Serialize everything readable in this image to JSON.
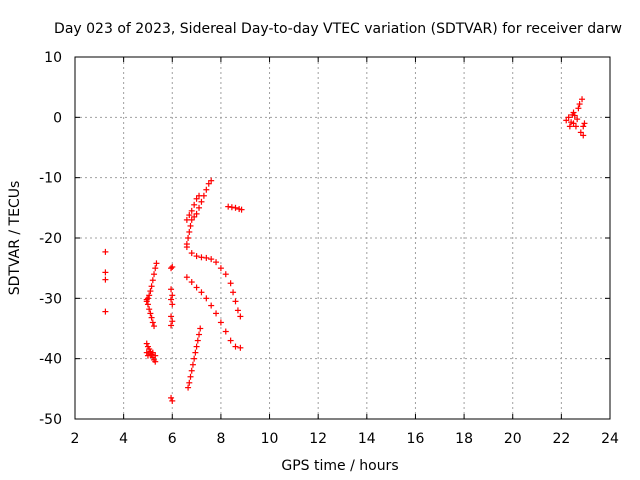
{
  "chart_data": {
    "type": "scatter",
    "title": "Day 023 of 2023, Sidereal Day-to-day VTEC variation (SDTVAR) for receiver darw",
    "xlabel": "GPS time / hours",
    "ylabel": "SDTVAR / TECUs",
    "xlim": [
      2,
      24
    ],
    "ylim": [
      -50,
      10
    ],
    "xticks": [
      "2",
      "4",
      "6",
      "8",
      "10",
      "12",
      "14",
      "16",
      "18",
      "20",
      "22",
      "24"
    ],
    "yticks": [
      "10",
      "0",
      "-10",
      "-20",
      "-30",
      "-40",
      "-50"
    ],
    "grid": true,
    "marker": "+",
    "series_color": "#ff0000",
    "points": [
      [
        3.25,
        -22.3
      ],
      [
        3.25,
        -25.7
      ],
      [
        3.25,
        -26.9
      ],
      [
        3.25,
        -32.2
      ],
      [
        4.95,
        -30.2
      ],
      [
        5.0,
        -30.0
      ],
      [
        5.05,
        -29.5
      ],
      [
        5.1,
        -28.8
      ],
      [
        5.15,
        -28.0
      ],
      [
        5.2,
        -27.0
      ],
      [
        5.25,
        -26.0
      ],
      [
        5.3,
        -25.0
      ],
      [
        5.35,
        -24.2
      ],
      [
        4.95,
        -30.5
      ],
      [
        5.0,
        -31.0
      ],
      [
        5.05,
        -31.8
      ],
      [
        5.1,
        -32.5
      ],
      [
        5.15,
        -33.2
      ],
      [
        5.2,
        -34.0
      ],
      [
        5.25,
        -34.6
      ],
      [
        4.95,
        -37.5
      ],
      [
        5.0,
        -38.0
      ],
      [
        5.05,
        -38.4
      ],
      [
        5.1,
        -38.8
      ],
      [
        5.15,
        -39.3
      ],
      [
        5.2,
        -39.8
      ],
      [
        5.25,
        -40.2
      ],
      [
        5.3,
        -40.5
      ],
      [
        4.95,
        -39.0
      ],
      [
        5.0,
        -39.5
      ],
      [
        5.1,
        -39.2
      ],
      [
        5.2,
        -39.0
      ],
      [
        5.3,
        -39.5
      ],
      [
        5.95,
        -25.0
      ],
      [
        6.0,
        -24.8
      ],
      [
        5.95,
        -28.5
      ],
      [
        6.0,
        -29.5
      ],
      [
        5.95,
        -30.2
      ],
      [
        6.0,
        -31.0
      ],
      [
        5.95,
        -33.0
      ],
      [
        6.0,
        -33.8
      ],
      [
        5.95,
        -34.5
      ],
      [
        5.95,
        -46.5
      ],
      [
        6.0,
        -47.0
      ],
      [
        6.65,
        -44.8
      ],
      [
        6.7,
        -44.0
      ],
      [
        6.75,
        -43.0
      ],
      [
        6.8,
        -42.0
      ],
      [
        6.85,
        -41.0
      ],
      [
        6.9,
        -40.0
      ],
      [
        6.95,
        -39.0
      ],
      [
        7.0,
        -38.0
      ],
      [
        7.05,
        -37.0
      ],
      [
        7.1,
        -36.0
      ],
      [
        7.15,
        -35.0
      ],
      [
        6.6,
        -21.0
      ],
      [
        6.65,
        -20.0
      ],
      [
        6.7,
        -19.0
      ],
      [
        6.75,
        -18.0
      ],
      [
        6.8,
        -17.0
      ],
      [
        6.9,
        -16.5
      ],
      [
        7.0,
        -16.0
      ],
      [
        7.1,
        -15.0
      ],
      [
        7.2,
        -14.0
      ],
      [
        7.3,
        -13.0
      ],
      [
        7.4,
        -12.0
      ],
      [
        7.5,
        -11.0
      ],
      [
        7.6,
        -10.5
      ],
      [
        6.6,
        -17.0
      ],
      [
        6.7,
        -16.2
      ],
      [
        6.8,
        -15.5
      ],
      [
        6.9,
        -14.5
      ],
      [
        7.0,
        -13.5
      ],
      [
        7.1,
        -13.0
      ],
      [
        6.6,
        -21.5
      ],
      [
        6.8,
        -22.5
      ],
      [
        7.0,
        -23.0
      ],
      [
        7.2,
        -23.2
      ],
      [
        7.4,
        -23.3
      ],
      [
        7.6,
        -23.5
      ],
      [
        7.8,
        -24.0
      ],
      [
        8.0,
        -25.0
      ],
      [
        8.2,
        -26.0
      ],
      [
        8.4,
        -27.5
      ],
      [
        8.5,
        -29.0
      ],
      [
        8.6,
        -30.5
      ],
      [
        8.7,
        -32.0
      ],
      [
        8.8,
        -33.0
      ],
      [
        6.6,
        -26.5
      ],
      [
        6.8,
        -27.3
      ],
      [
        7.0,
        -28.2
      ],
      [
        7.2,
        -29.0
      ],
      [
        7.4,
        -30.0
      ],
      [
        7.6,
        -31.2
      ],
      [
        7.8,
        -32.5
      ],
      [
        8.0,
        -34.0
      ],
      [
        8.2,
        -35.5
      ],
      [
        8.4,
        -37.0
      ],
      [
        8.6,
        -38.0
      ],
      [
        8.8,
        -38.2
      ],
      [
        8.3,
        -14.8
      ],
      [
        8.45,
        -14.9
      ],
      [
        8.6,
        -15.0
      ],
      [
        8.75,
        -15.2
      ],
      [
        8.85,
        -15.3
      ],
      [
        22.2,
        -0.5
      ],
      [
        22.3,
        0.0
      ],
      [
        22.4,
        -0.8
      ],
      [
        22.45,
        0.4
      ],
      [
        22.5,
        -1.0
      ],
      [
        22.55,
        0.3
      ],
      [
        22.6,
        -1.5
      ],
      [
        22.65,
        -0.3
      ],
      [
        22.7,
        1.5
      ],
      [
        22.75,
        2.2
      ],
      [
        22.85,
        3.0
      ],
      [
        22.8,
        -2.5
      ],
      [
        22.9,
        -3.0
      ],
      [
        22.9,
        -1.5
      ],
      [
        22.95,
        -1.0
      ],
      [
        22.35,
        -1.5
      ],
      [
        22.5,
        0.8
      ]
    ]
  }
}
